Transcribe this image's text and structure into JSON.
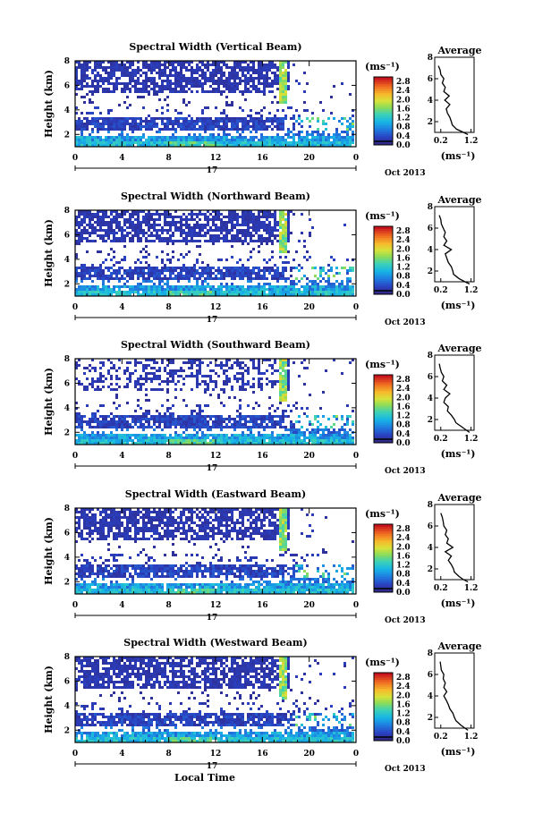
{
  "chart_data": {
    "type": "heatmap",
    "panels": [
      {
        "title": "Spectral Width (Vertical Beam)",
        "avg_title": "Average",
        "avg_profile": [
          [
            1.1,
            0.8
          ],
          [
            0.95,
            1.0
          ],
          [
            0.72,
            1.3
          ],
          [
            0.58,
            1.7
          ],
          [
            0.55,
            2.0
          ],
          [
            0.5,
            2.4
          ],
          [
            0.42,
            2.8
          ],
          [
            0.38,
            3.2
          ],
          [
            0.5,
            3.6
          ],
          [
            0.33,
            4.0
          ],
          [
            0.48,
            4.4
          ],
          [
            0.3,
            4.8
          ],
          [
            0.35,
            5.2
          ],
          [
            0.25,
            5.6
          ],
          [
            0.3,
            6.0
          ],
          [
            0.2,
            6.4
          ],
          [
            0.18,
            6.8
          ],
          [
            0.12,
            7.2
          ]
        ]
      },
      {
        "title": "Spectral Width (Northward Beam)",
        "avg_title": "Average",
        "avg_profile": [
          [
            1.15,
            0.8
          ],
          [
            1.0,
            1.0
          ],
          [
            0.8,
            1.3
          ],
          [
            0.62,
            1.7
          ],
          [
            0.6,
            2.0
          ],
          [
            0.55,
            2.4
          ],
          [
            0.45,
            2.8
          ],
          [
            0.4,
            3.2
          ],
          [
            0.35,
            3.6
          ],
          [
            0.55,
            4.0
          ],
          [
            0.3,
            4.4
          ],
          [
            0.4,
            4.8
          ],
          [
            0.3,
            5.2
          ],
          [
            0.35,
            5.6
          ],
          [
            0.28,
            6.0
          ],
          [
            0.22,
            6.4
          ],
          [
            0.2,
            6.8
          ],
          [
            0.15,
            7.2
          ]
        ]
      },
      {
        "title": "Spectral Width (Southward Beam)",
        "avg_title": "Average",
        "avg_profile": [
          [
            1.15,
            0.8
          ],
          [
            1.05,
            1.0
          ],
          [
            0.9,
            1.3
          ],
          [
            0.7,
            1.7
          ],
          [
            0.65,
            2.0
          ],
          [
            0.55,
            2.4
          ],
          [
            0.42,
            2.8
          ],
          [
            0.45,
            3.2
          ],
          [
            0.3,
            3.6
          ],
          [
            0.35,
            4.0
          ],
          [
            0.5,
            4.4
          ],
          [
            0.3,
            4.8
          ],
          [
            0.4,
            5.2
          ],
          [
            0.25,
            5.6
          ],
          [
            0.3,
            6.0
          ],
          [
            0.22,
            6.4
          ],
          [
            0.18,
            6.8
          ],
          [
            0.15,
            7.2
          ]
        ]
      },
      {
        "title": "Spectral Width (Eastward Beam)",
        "avg_title": "Average",
        "avg_profile": [
          [
            1.1,
            0.8
          ],
          [
            0.95,
            1.0
          ],
          [
            0.8,
            1.3
          ],
          [
            0.65,
            1.7
          ],
          [
            0.62,
            2.0
          ],
          [
            0.55,
            2.4
          ],
          [
            0.45,
            2.8
          ],
          [
            0.55,
            3.2
          ],
          [
            0.35,
            3.6
          ],
          [
            0.6,
            4.0
          ],
          [
            0.4,
            4.4
          ],
          [
            0.45,
            4.8
          ],
          [
            0.35,
            5.2
          ],
          [
            0.4,
            5.6
          ],
          [
            0.3,
            6.0
          ],
          [
            0.28,
            6.4
          ],
          [
            0.25,
            6.8
          ],
          [
            0.2,
            7.2
          ]
        ]
      },
      {
        "title": "Spectral Width (Westward Beam)",
        "avg_title": "Average",
        "avg_profile": [
          [
            1.1,
            0.8
          ],
          [
            1.0,
            1.0
          ],
          [
            0.85,
            1.3
          ],
          [
            0.7,
            1.7
          ],
          [
            0.65,
            2.0
          ],
          [
            0.6,
            2.4
          ],
          [
            0.5,
            2.8
          ],
          [
            0.45,
            3.2
          ],
          [
            0.38,
            3.6
          ],
          [
            0.3,
            4.0
          ],
          [
            0.4,
            4.4
          ],
          [
            0.3,
            4.8
          ],
          [
            0.35,
            5.2
          ],
          [
            0.28,
            5.6
          ],
          [
            0.3,
            6.0
          ],
          [
            0.22,
            6.4
          ],
          [
            0.2,
            6.8
          ],
          [
            0.18,
            7.2
          ]
        ]
      }
    ],
    "x_ticks": [
      "0",
      "4",
      "8",
      "12",
      "16",
      "20",
      "0"
    ],
    "date_day": "17",
    "date_label": "Oct 2013",
    "xlabel": "Local Time",
    "ylabel": "Height (km)",
    "y_ticks": [
      "2",
      "4",
      "6",
      "8"
    ],
    "ylim": [
      1,
      8
    ],
    "xlim": [
      0,
      24
    ],
    "colorbar": {
      "unit": "(ms⁻¹)",
      "ticks": [
        "0.0",
        "0.4",
        "0.8",
        "1.2",
        "1.6",
        "2.0",
        "2.4",
        "2.8"
      ],
      "range": [
        0,
        3.0
      ]
    },
    "avg_xticks": [
      "0.2",
      "1.2"
    ],
    "avg_xlabel": "(ms⁻¹)",
    "avg_xlim": [
      0,
      1.3
    ]
  }
}
